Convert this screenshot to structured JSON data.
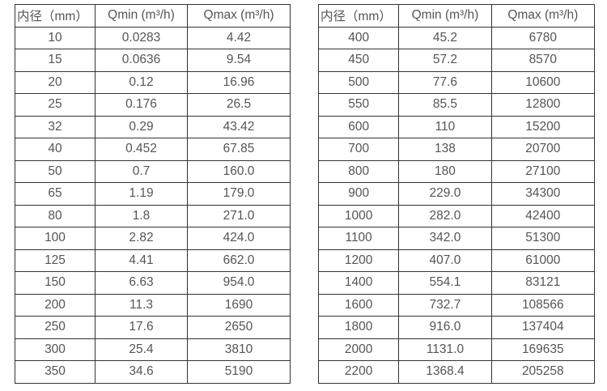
{
  "colors": {
    "background": "#ffffff",
    "border": "#333333",
    "text": "#555555"
  },
  "tables": [
    {
      "name": "flow-spec-table-small-diameters",
      "headers": [
        "内径（mm）",
        "Qmin (m³/h)",
        "Qmax (m³/h)"
      ],
      "rows": [
        [
          "10",
          "0.0283",
          "4.42"
        ],
        [
          "15",
          "0.0636",
          "9.54"
        ],
        [
          "20",
          "0.12",
          "16.96"
        ],
        [
          "25",
          "0.176",
          "26.5"
        ],
        [
          "32",
          "0.29",
          "43.42"
        ],
        [
          "40",
          "0.452",
          "67.85"
        ],
        [
          "50",
          "0.7",
          "160.0"
        ],
        [
          "65",
          "1.19",
          "179.0"
        ],
        [
          "80",
          "1.8",
          "271.0"
        ],
        [
          "100",
          "2.82",
          "424.0"
        ],
        [
          "125",
          "4.41",
          "662.0"
        ],
        [
          "150",
          "6.63",
          "954.0"
        ],
        [
          "200",
          "11.3",
          "1690"
        ],
        [
          "250",
          "17.6",
          "2650"
        ],
        [
          "300",
          "25.4",
          "3810"
        ],
        [
          "350",
          "34.6",
          "5190"
        ]
      ]
    },
    {
      "name": "flow-spec-table-large-diameters",
      "headers": [
        "内径（mm）",
        "Qmin (m³/h)",
        "Qmax (m³/h)"
      ],
      "rows": [
        [
          "400",
          "45.2",
          "6780"
        ],
        [
          "450",
          "57.2",
          "8570"
        ],
        [
          "500",
          "77.6",
          "10600"
        ],
        [
          "550",
          "85.5",
          "12800"
        ],
        [
          "600",
          "110",
          "15200"
        ],
        [
          "700",
          "138",
          "20700"
        ],
        [
          "800",
          "180",
          "27100"
        ],
        [
          "900",
          "229.0",
          "34300"
        ],
        [
          "1000",
          "282.0",
          "42400"
        ],
        [
          "1100",
          "342.0",
          "51300"
        ],
        [
          "1200",
          "407.0",
          "61000"
        ],
        [
          "1400",
          "554.1",
          "83121"
        ],
        [
          "1600",
          "732.7",
          "108566"
        ],
        [
          "1800",
          "916.0",
          "137404"
        ],
        [
          "2000",
          "1131.0",
          "169635"
        ],
        [
          "2200",
          "1368.4",
          "205258"
        ]
      ]
    }
  ]
}
